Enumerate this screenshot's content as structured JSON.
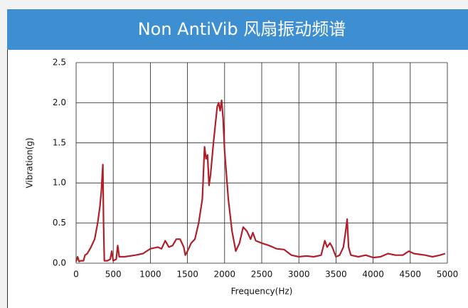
{
  "chart_data": {
    "type": "line",
    "title": "Non AntiVib 风扇振动频谱",
    "x_label": "Frequency(Hz)",
    "y_label": "Vibration(g)",
    "x": [
      0,
      20,
      40,
      60,
      100,
      120,
      150,
      200,
      250,
      290,
      320,
      340,
      360,
      370,
      380,
      420,
      460,
      480,
      500,
      540,
      560,
      580,
      650,
      800,
      900,
      1000,
      1100,
      1150,
      1200,
      1250,
      1300,
      1350,
      1400,
      1450,
      1470,
      1500,
      1550,
      1600,
      1650,
      1700,
      1730,
      1750,
      1770,
      1790,
      1810,
      1850,
      1900,
      1920,
      1940,
      1960,
      1980,
      2000,
      2050,
      2100,
      2150,
      2200,
      2250,
      2300,
      2350,
      2380,
      2420,
      2500,
      2600,
      2700,
      2800,
      2900,
      3000,
      3100,
      3200,
      3300,
      3350,
      3380,
      3420,
      3450,
      3500,
      3550,
      3600,
      3630,
      3650,
      3670,
      3700,
      3800,
      3900,
      4000,
      4100,
      4200,
      4300,
      4400,
      4480,
      4550,
      4700,
      4800,
      4900,
      4970
    ],
    "series": [
      {
        "name": "Vibration",
        "color": "#b0202a",
        "values": [
          0.02,
          0.08,
          0.02,
          0.03,
          0.03,
          0.1,
          0.12,
          0.2,
          0.3,
          0.5,
          0.7,
          0.9,
          1.23,
          0.5,
          0.03,
          0.03,
          0.05,
          0.15,
          0.03,
          0.05,
          0.22,
          0.08,
          0.08,
          0.1,
          0.12,
          0.18,
          0.2,
          0.18,
          0.28,
          0.2,
          0.22,
          0.3,
          0.3,
          0.2,
          0.1,
          0.15,
          0.25,
          0.3,
          0.5,
          0.8,
          1.45,
          1.3,
          1.35,
          0.97,
          1.1,
          1.5,
          1.95,
          2.0,
          1.9,
          2.03,
          1.8,
          1.4,
          0.8,
          0.4,
          0.15,
          0.25,
          0.45,
          0.4,
          0.3,
          0.38,
          0.28,
          0.25,
          0.22,
          0.18,
          0.17,
          0.1,
          0.08,
          0.09,
          0.08,
          0.1,
          0.28,
          0.2,
          0.25,
          0.2,
          0.08,
          0.1,
          0.2,
          0.4,
          0.55,
          0.2,
          0.1,
          0.08,
          0.1,
          0.07,
          0.08,
          0.12,
          0.1,
          0.1,
          0.15,
          0.12,
          0.1,
          0.08,
          0.1,
          0.12
        ]
      }
    ],
    "xlim": [
      0,
      5000
    ],
    "xticks": [
      0,
      500,
      1000,
      1500,
      2000,
      2500,
      3000,
      3500,
      4000,
      4500,
      5000
    ],
    "ylim": [
      0,
      2.5
    ],
    "yticks": [
      {
        "value": 0,
        "label": "0.0"
      },
      0.5,
      {
        "value": 1,
        "label": "1.0"
      },
      1.5,
      {
        "value": 2,
        "label": "2.0"
      },
      2.5
    ],
    "grid": true
  }
}
